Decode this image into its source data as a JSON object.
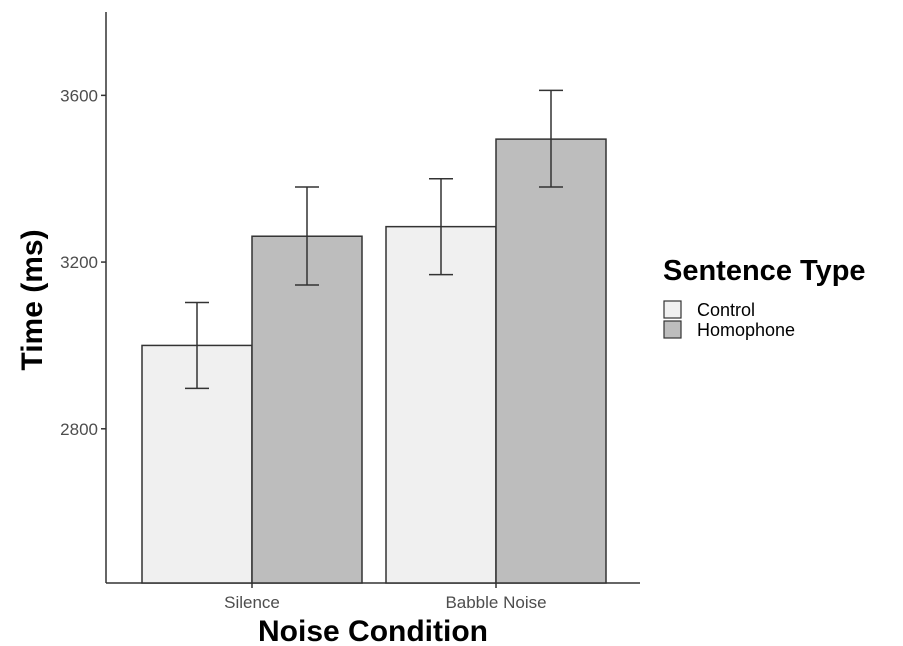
{
  "chart_data": {
    "type": "bar",
    "categories": [
      "Silence",
      "Babble Noise"
    ],
    "series": [
      {
        "name": "Control",
        "values": [
          3000,
          3285
        ],
        "error_low": [
          2897,
          3170
        ],
        "error_high": [
          3103,
          3400
        ],
        "color": "#f0f0f0"
      },
      {
        "name": "Homophone",
        "values": [
          3262,
          3495
        ],
        "error_low": [
          3145,
          3380
        ],
        "error_high": [
          3380,
          3612
        ],
        "color": "#bdbdbd"
      }
    ],
    "xlabel": "Noise Condition",
    "ylabel": "Time (ms)",
    "y_ticks": [
      2800,
      3200,
      3600
    ],
    "ylim": [
      2430,
      3800
    ],
    "legend_title": "Sentence Type",
    "legend_position": "right",
    "grid": false
  }
}
